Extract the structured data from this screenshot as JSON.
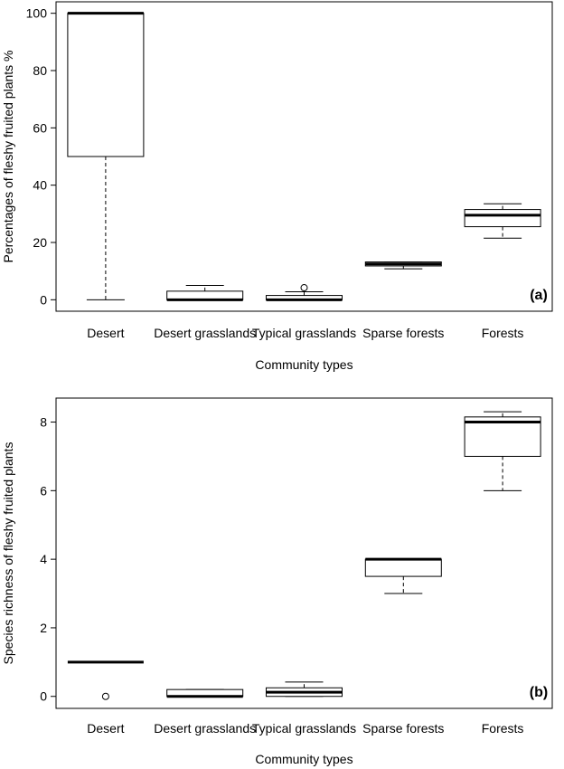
{
  "chart_data": [
    {
      "type": "boxplot",
      "panel_label": "(a)",
      "xlabel": "Community types",
      "ylabel": "Percentages of fleshy fruited plants %",
      "ylim": [
        -4,
        104
      ],
      "yticks": [
        0,
        20,
        40,
        60,
        80,
        100
      ],
      "grid": false,
      "categories": [
        "Desert",
        "Desert grasslands",
        "Typical grasslands",
        "Sparse forests",
        "Forests"
      ],
      "boxes": [
        {
          "category": "Desert",
          "min": 0,
          "q1": 50,
          "median": 100,
          "q3": 100,
          "max": 100,
          "outliers": []
        },
        {
          "category": "Desert grasslands",
          "min": 0,
          "q1": 0,
          "median": 0,
          "q3": 3,
          "max": 5,
          "outliers": []
        },
        {
          "category": "Typical grasslands",
          "min": 0,
          "q1": 0,
          "median": 0,
          "q3": 1.5,
          "max": 2.8,
          "outliers": [
            4.2
          ]
        },
        {
          "category": "Sparse forests",
          "min": 10.8,
          "q1": 11.8,
          "median": 12.5,
          "q3": 13.2,
          "max": 13.2,
          "outliers": []
        },
        {
          "category": "Forests",
          "min": 21.5,
          "q1": 25.5,
          "median": 29.5,
          "q3": 31.5,
          "max": 33.5,
          "outliers": []
        }
      ]
    },
    {
      "type": "boxplot",
      "panel_label": "(b)",
      "xlabel": "Community types",
      "ylabel": "Species richness of fleshy fruited plants",
      "ylim": [
        -0.35,
        8.7
      ],
      "yticks": [
        0,
        2,
        4,
        6,
        8
      ],
      "grid": false,
      "categories": [
        "Desert",
        "Desert grasslands",
        "Typical grasslands",
        "Sparse forests",
        "Forests"
      ],
      "boxes": [
        {
          "category": "Desert",
          "min": 1,
          "q1": 1,
          "median": 1,
          "q3": 1,
          "max": 1,
          "outliers": [
            0
          ]
        },
        {
          "category": "Desert grasslands",
          "min": 0,
          "q1": 0,
          "median": 0,
          "q3": 0.2,
          "max": 0.2,
          "outliers": []
        },
        {
          "category": "Typical grasslands",
          "min": 0,
          "q1": 0,
          "median": 0.12,
          "q3": 0.25,
          "max": 0.42,
          "outliers": []
        },
        {
          "category": "Sparse forests",
          "min": 3,
          "q1": 3.5,
          "median": 4,
          "q3": 4,
          "max": 4,
          "outliers": []
        },
        {
          "category": "Forests",
          "min": 6,
          "q1": 7,
          "median": 8,
          "q3": 8.15,
          "max": 8.3,
          "outliers": []
        }
      ]
    }
  ]
}
